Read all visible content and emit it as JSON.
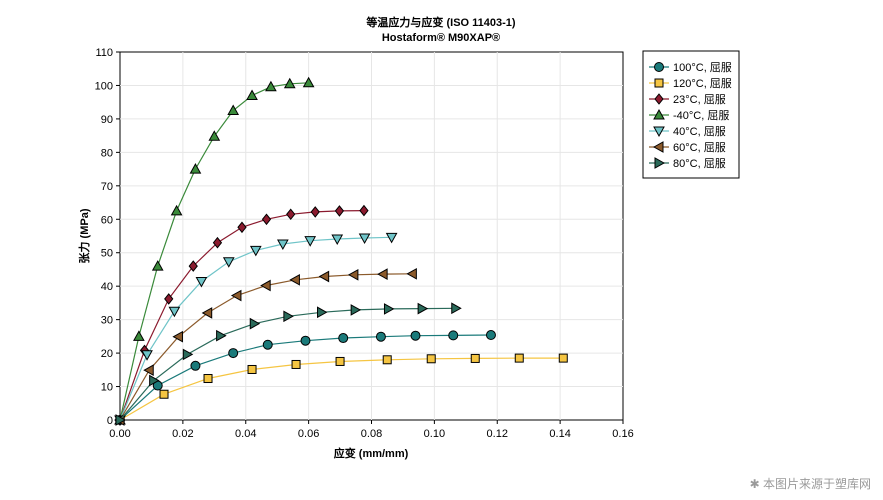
{
  "chart_data": {
    "type": "line",
    "title": "等温应力与应变 (ISO 11403-1)",
    "subtitle": "Hostaform® M90XAP®",
    "xlabel": "应变 (mm/mm)",
    "ylabel": "张力 (MPa)",
    "xlim": [
      0,
      0.16
    ],
    "ylim": [
      0,
      110
    ],
    "x_ticks": [
      "0.00",
      "0.02",
      "0.04",
      "0.06",
      "0.08",
      "0.10",
      "0.12",
      "0.14",
      "0.16"
    ],
    "y_ticks": [
      "0",
      "10",
      "20",
      "30",
      "40",
      "50",
      "60",
      "70",
      "80",
      "90",
      "100",
      "110"
    ],
    "grid": true,
    "legend_position": "right",
    "series": [
      {
        "name": "100°C, 屈服",
        "color": "#1a7a7a",
        "marker": "circle",
        "x": [
          0,
          0.012,
          0.024,
          0.036,
          0.047,
          0.059,
          0.071,
          0.083,
          0.094,
          0.106,
          0.118
        ],
        "y": [
          0,
          10.3,
          16.2,
          20.0,
          22.5,
          23.7,
          24.5,
          24.9,
          25.2,
          25.3,
          25.4
        ]
      },
      {
        "name": "120°C, 屈服",
        "color": "#f5c542",
        "marker": "square",
        "x": [
          0,
          0.014,
          0.028,
          0.042,
          0.056,
          0.07,
          0.085,
          0.099,
          0.113,
          0.127,
          0.141
        ],
        "y": [
          0,
          7.7,
          12.4,
          15.1,
          16.6,
          17.5,
          18.0,
          18.3,
          18.4,
          18.5,
          18.5
        ]
      },
      {
        "name": "23°C, 屈服",
        "color": "#8b1a2e",
        "marker": "diamond",
        "x": [
          0,
          0.0078,
          0.0155,
          0.0233,
          0.031,
          0.0388,
          0.0466,
          0.0543,
          0.0621,
          0.0698,
          0.0776
        ],
        "y": [
          0,
          20.8,
          36.2,
          46.0,
          53.0,
          57.6,
          60.0,
          61.5,
          62.2,
          62.5,
          62.6
        ]
      },
      {
        "name": "-40°C, 屈服",
        "color": "#3a8a3a",
        "marker": "triangle-up",
        "x": [
          0,
          0.006,
          0.012,
          0.018,
          0.024,
          0.03,
          0.036,
          0.042,
          0.048,
          0.054,
          0.06
        ],
        "y": [
          0,
          25.0,
          46.0,
          62.5,
          75.0,
          84.8,
          92.5,
          97.0,
          99.6,
          100.5,
          100.8
        ]
      },
      {
        "name": "40°C, 屈服",
        "color": "#6fc4c8",
        "marker": "triangle-down",
        "x": [
          0,
          0.0086,
          0.0173,
          0.0259,
          0.0346,
          0.0432,
          0.0518,
          0.0605,
          0.0691,
          0.0778,
          0.0864
        ],
        "y": [
          0,
          19.5,
          32.5,
          41.4,
          47.3,
          50.7,
          52.6,
          53.6,
          54.1,
          54.4,
          54.6
        ]
      },
      {
        "name": "60°C, 屈服",
        "color": "#8b5a2b",
        "marker": "triangle-left",
        "x": [
          0,
          0.0093,
          0.0186,
          0.0279,
          0.0372,
          0.0465,
          0.0558,
          0.0651,
          0.0744,
          0.0837,
          0.093
        ],
        "y": [
          0,
          14.9,
          24.9,
          32.0,
          37.2,
          40.2,
          41.9,
          42.9,
          43.4,
          43.6,
          43.7
        ]
      },
      {
        "name": "80°C, 屈服",
        "color": "#2a6a5a",
        "marker": "triangle-right",
        "x": [
          0,
          0.0107,
          0.0214,
          0.032,
          0.0427,
          0.0534,
          0.0641,
          0.0748,
          0.0854,
          0.0961,
          0.1068
        ],
        "y": [
          0,
          11.8,
          19.6,
          25.2,
          28.8,
          31.0,
          32.2,
          32.9,
          33.2,
          33.3,
          33.4
        ]
      }
    ]
  },
  "watermark": "本图片来源于塑库网",
  "watermark_icon": "snowflake-icon"
}
